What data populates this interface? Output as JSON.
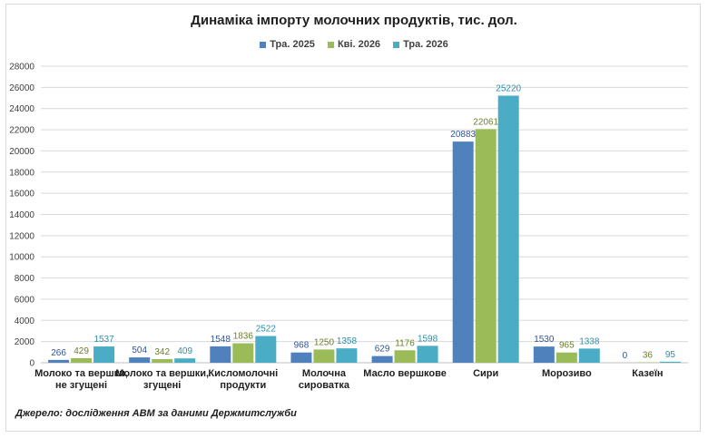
{
  "chart_data": {
    "type": "bar",
    "title": "Динаміка імпорту молочних продуктів, тис. дол.",
    "source": "Джерело: дослідження АВМ за даними Держмитслужби",
    "categories": [
      [
        "Молоко  та вершки,",
        "не згущені"
      ],
      [
        "Молоко та вершки,",
        "згущені"
      ],
      [
        "Кисломолочні",
        "продукти"
      ],
      [
        "Молочна",
        "сироватка"
      ],
      [
        "Масло  вершкове"
      ],
      [
        "Сири"
      ],
      [
        "Морозиво"
      ],
      [
        "Казеїн"
      ]
    ],
    "series": [
      {
        "name": "Тра.  2025",
        "color": "#4f81bd",
        "label_color": "#2f5597",
        "values": [
          266,
          504,
          1548,
          968,
          629,
          20883,
          1530,
          0
        ]
      },
      {
        "name": "Кві.  2026",
        "color": "#9bbb59",
        "label_color": "#6b7f2a",
        "values": [
          429,
          342,
          1836,
          1250,
          1176,
          22061,
          965,
          36
        ]
      },
      {
        "name": "Тра.  2026",
        "color": "#4bacc6",
        "label_color": "#2e8fab",
        "values": [
          1537,
          409,
          2522,
          1358,
          1598,
          25220,
          1338,
          95
        ]
      }
    ],
    "ylim": [
      0,
      28000
    ],
    "yticks": [
      0,
      2000,
      4000,
      6000,
      8000,
      10000,
      12000,
      14000,
      16000,
      18000,
      20000,
      22000,
      24000,
      26000,
      28000
    ],
    "grid": true,
    "legend_position": "top"
  }
}
